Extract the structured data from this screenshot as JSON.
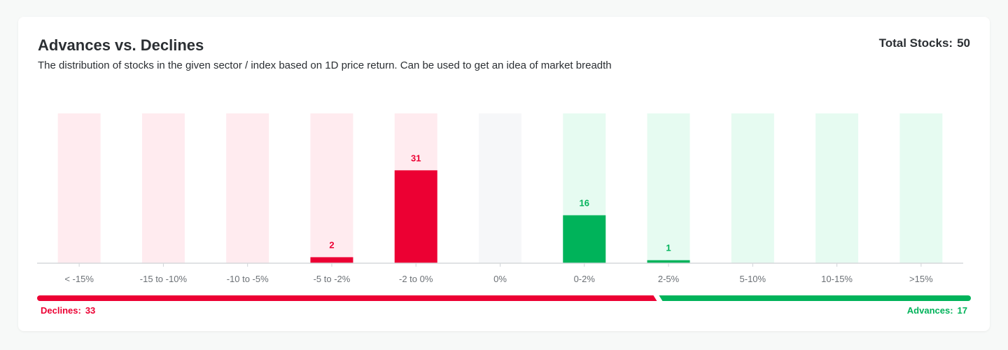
{
  "header": {
    "title": "Advances vs. Declines",
    "subtitle": "The distribution of stocks in the given sector / index based on 1D price return. Can be used to get an idea of market breadth",
    "total_label": "Total Stocks:",
    "total_value": "50"
  },
  "breadth": {
    "declines_label": "Declines:",
    "declines_value": "33",
    "advances_label": "Advances:",
    "advances_value": "17",
    "declines_count": 33,
    "advances_count": 17
  },
  "colors": {
    "decline": "#ec0033",
    "decline_bg": "#ffebef",
    "advance": "#00b35a",
    "advance_bg": "#e6fbf1",
    "neutral_bg": "#f6f7f9"
  },
  "chart_data": {
    "type": "bar",
    "categories": [
      "< -15%",
      "-15 to -10%",
      "-10 to -5%",
      "-5 to -2%",
      "-2 to 0%",
      "0%",
      "0-2%",
      "2-5%",
      "5-10%",
      "10-15%",
      ">15%"
    ],
    "values": [
      0,
      0,
      0,
      2,
      31,
      0,
      16,
      1,
      0,
      0,
      0
    ],
    "kinds": [
      "decline",
      "decline",
      "decline",
      "decline",
      "decline",
      "neutral",
      "advance",
      "advance",
      "advance",
      "advance",
      "advance"
    ],
    "ylim": [
      0,
      50
    ],
    "grid": false
  }
}
